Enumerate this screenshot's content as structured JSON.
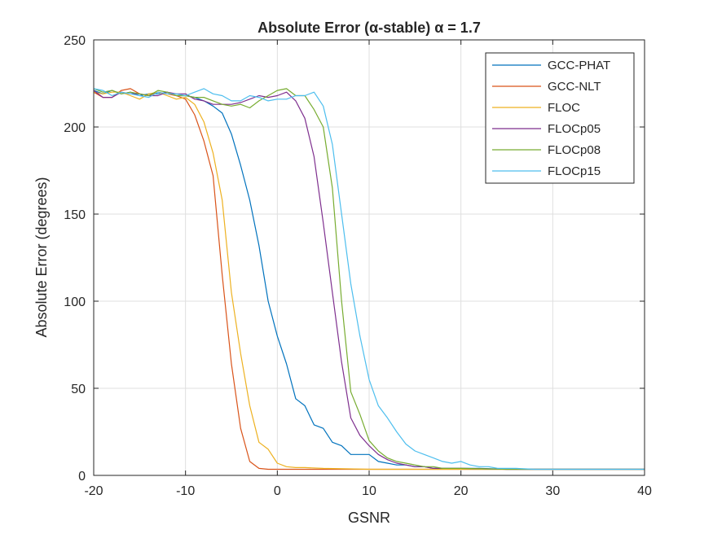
{
  "chart_data": {
    "type": "line",
    "title": "Absolute Error (α-stable) α = 1.7",
    "xlabel": "GSNR",
    "ylabel": "Absolute Error (degrees)",
    "xlim": [
      -20,
      40
    ],
    "ylim": [
      0,
      250
    ],
    "xticks": [
      -20,
      -10,
      0,
      10,
      20,
      30,
      40
    ],
    "yticks": [
      0,
      50,
      100,
      150,
      200,
      250
    ],
    "xtick_labels": [
      "-20",
      "-10",
      "0",
      "10",
      "20",
      "30",
      "40"
    ],
    "ytick_labels": [
      "0",
      "50",
      "100",
      "150",
      "200",
      "250"
    ],
    "grid": true,
    "legend_position": "top-right",
    "series": [
      {
        "name": "GCC-PHAT",
        "color": "#0072BD",
        "x": [
          -20,
          -19,
          -18,
          -17,
          -16,
          -15,
          -14,
          -13,
          -12,
          -11,
          -10,
          -9,
          -8,
          -7,
          -6,
          -5,
          -4,
          -3,
          -2,
          -1,
          0,
          1,
          2,
          3,
          4,
          5,
          6,
          7,
          8,
          9,
          10,
          11,
          12,
          13,
          14,
          15,
          16,
          17,
          18,
          19,
          20,
          22,
          25,
          30,
          35,
          40
        ],
        "y": [
          221,
          219,
          221,
          219,
          220,
          218,
          219,
          219,
          220,
          218,
          218,
          217,
          215,
          212,
          208,
          196,
          178,
          158,
          132,
          100,
          80,
          64,
          44,
          40,
          29,
          27,
          19,
          17,
          12,
          12,
          12,
          8,
          7,
          6,
          6,
          5,
          5,
          4,
          4,
          4,
          4,
          4,
          3.5,
          3.5,
          3.5,
          3.5
        ]
      },
      {
        "name": "GCC-NLT",
        "color": "#D95319",
        "x": [
          -20,
          -19,
          -18,
          -17,
          -16,
          -15,
          -14,
          -13,
          -12,
          -11,
          -10,
          -9,
          -8,
          -7,
          -6,
          -5,
          -4,
          -3,
          -2,
          -1,
          0,
          5,
          10,
          20,
          30,
          40
        ],
        "y": [
          220,
          217,
          217,
          221,
          222,
          219,
          218,
          220,
          219,
          218,
          216,
          207,
          192,
          172,
          115,
          64,
          27,
          8,
          4,
          3.5,
          3.5,
          3.5,
          3.5,
          3.5,
          3.5,
          3.5
        ]
      },
      {
        "name": "FLOC",
        "color": "#EDB120",
        "x": [
          -20,
          -19,
          -18,
          -17,
          -16,
          -15,
          -14,
          -13,
          -12,
          -11,
          -10,
          -9,
          -8,
          -7,
          -6,
          -5,
          -4,
          -3,
          -2,
          -1,
          0,
          1,
          2,
          3,
          5,
          10,
          20,
          30,
          40
        ],
        "y": [
          220,
          219,
          220,
          220,
          218,
          216,
          219,
          220,
          218,
          216,
          217,
          213,
          203,
          185,
          158,
          105,
          70,
          40,
          19,
          15,
          7,
          5,
          4.5,
          4.5,
          4,
          3.5,
          3.5,
          3.5,
          3.5
        ]
      },
      {
        "name": "FLOCp05",
        "color": "#7E2F8E",
        "x": [
          -20,
          -19,
          -18,
          -17,
          -16,
          -15,
          -14,
          -13,
          -12,
          -11,
          -10,
          -9,
          -8,
          -7,
          -6,
          -5,
          -4,
          -3,
          -2,
          -1,
          0,
          1,
          2,
          3,
          4,
          5,
          6,
          7,
          8,
          9,
          10,
          11,
          12,
          13,
          14,
          15,
          16,
          17,
          18,
          20,
          25,
          30,
          40
        ],
        "y": [
          221,
          217,
          217,
          220,
          219,
          219,
          218,
          218,
          220,
          219,
          219,
          216,
          215,
          213,
          213,
          213,
          214,
          216,
          218,
          217,
          218,
          220,
          215,
          205,
          183,
          145,
          105,
          65,
          33,
          23,
          17,
          12,
          9,
          7,
          6,
          5,
          5,
          4,
          4,
          4,
          3.5,
          3.5,
          3.5
        ]
      },
      {
        "name": "FLOCp08",
        "color": "#77AC30",
        "x": [
          -20,
          -19,
          -18,
          -17,
          -16,
          -15,
          -14,
          -13,
          -12,
          -11,
          -10,
          -9,
          -8,
          -7,
          -6,
          -5,
          -4,
          -3,
          -2,
          -1,
          0,
          1,
          2,
          3,
          4,
          5,
          6,
          7,
          8,
          9,
          10,
          11,
          12,
          13,
          14,
          15,
          16,
          17,
          18,
          20,
          25,
          30,
          40
        ],
        "y": [
          222,
          220,
          221,
          219,
          220,
          219,
          218,
          221,
          220,
          218,
          218,
          217,
          217,
          215,
          213,
          212,
          213,
          211,
          215,
          218,
          221,
          222,
          218,
          218,
          210,
          200,
          165,
          100,
          48,
          35,
          20,
          14,
          10,
          8,
          7,
          6,
          5,
          5,
          4,
          4,
          3.5,
          3.5,
          3.5
        ]
      },
      {
        "name": "FLOCp15",
        "color": "#4DBEEE",
        "x": [
          -20,
          -19,
          -18,
          -17,
          -16,
          -15,
          -14,
          -13,
          -12,
          -11,
          -10,
          -9,
          -8,
          -7,
          -6,
          -5,
          -4,
          -3,
          -2,
          -1,
          0,
          1,
          2,
          3,
          4,
          5,
          6,
          7,
          8,
          9,
          10,
          11,
          12,
          13,
          14,
          15,
          16,
          17,
          18,
          19,
          20,
          21,
          22,
          23,
          24,
          25,
          26,
          28,
          30,
          35,
          40
        ],
        "y": [
          222,
          221,
          218,
          220,
          219,
          218,
          217,
          220,
          219,
          219,
          218,
          220,
          222,
          219,
          218,
          215,
          215,
          218,
          217,
          215,
          216,
          216,
          218,
          218,
          220,
          212,
          190,
          150,
          110,
          80,
          55,
          40,
          33,
          25,
          18,
          14,
          12,
          10,
          8,
          7,
          8,
          6,
          5,
          5,
          4,
          4,
          4,
          3.5,
          3.5,
          3.5,
          3.5
        ]
      }
    ]
  }
}
